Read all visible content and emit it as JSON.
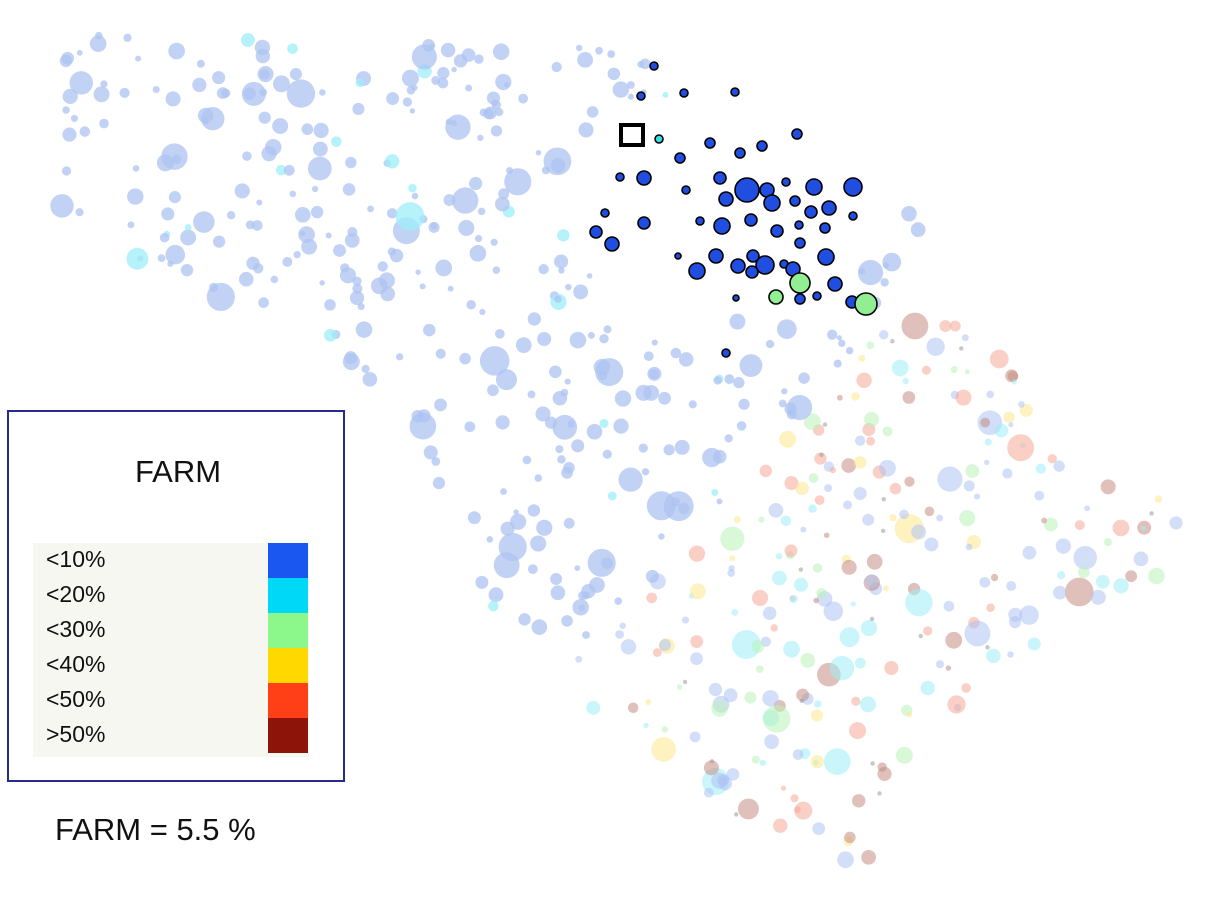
{
  "legend": {
    "title": "FARM",
    "items": [
      {
        "label": "<10%",
        "color": "#1a56f0"
      },
      {
        "label": "<20%",
        "color": "#00d8f8"
      },
      {
        "label": "<30%",
        "color": "#8cf88c"
      },
      {
        "label": "<40%",
        "color": "#ffd800"
      },
      {
        "label": "<50%",
        "color": "#ff4016"
      },
      {
        "label": ">50%",
        "color": "#8c1408"
      }
    ]
  },
  "caption": "FARM = 5.5 %",
  "colors": {
    "highlight_fill": "#1f4ee0",
    "highlight_green": "#92ee92",
    "highlight_cyan": "#32e0ec",
    "marker_stroke": "#000000"
  }
}
